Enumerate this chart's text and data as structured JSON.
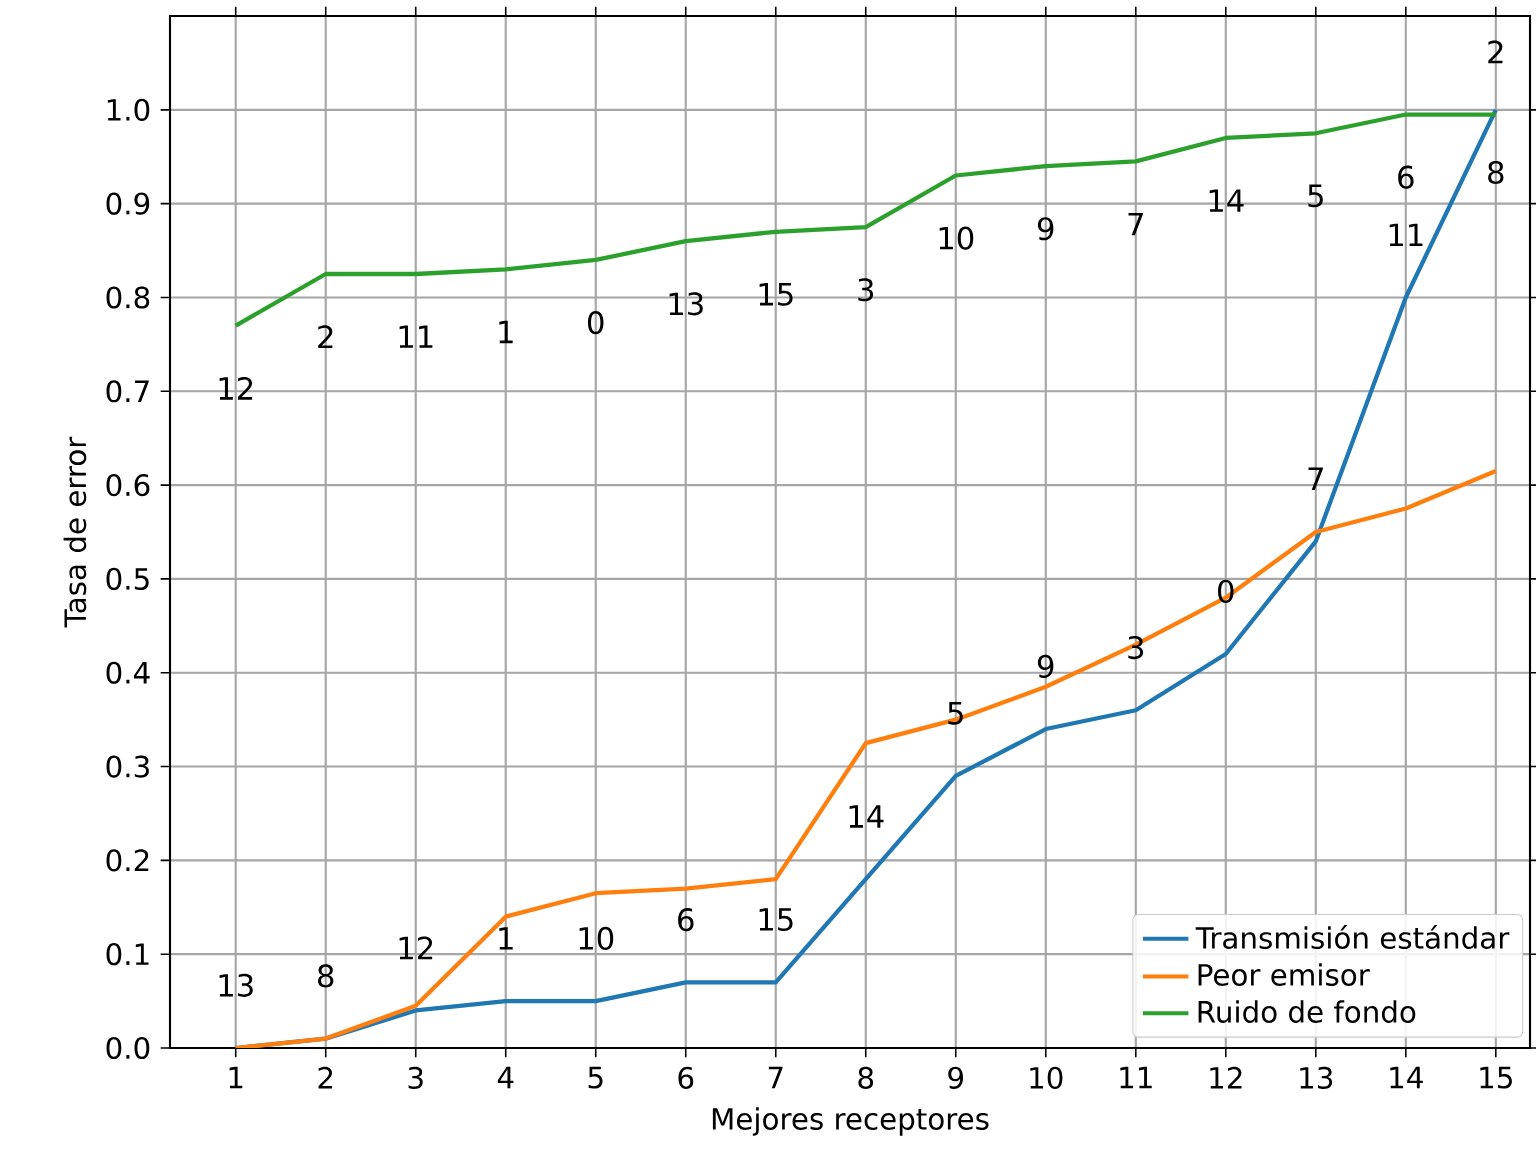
{
  "chart_data": {
    "type": "line",
    "xlabel": "Mejores receptores",
    "ylabel": "Tasa de error",
    "x": [
      1,
      2,
      3,
      4,
      5,
      6,
      7,
      8,
      9,
      10,
      11,
      12,
      13,
      14,
      15
    ],
    "xlim": [
      0.27,
      15.38
    ],
    "xticks": [
      1,
      2,
      3,
      4,
      5,
      6,
      7,
      8,
      9,
      10,
      11,
      12,
      13,
      14,
      15
    ],
    "ylim": [
      0,
      1.1
    ],
    "yticks": [
      {
        "value": 0,
        "label": "0.0"
      },
      {
        "value": 0.1,
        "label": "0.1"
      },
      {
        "value": 0.2,
        "label": "0.2"
      },
      {
        "value": 0.3,
        "label": "0.3"
      },
      {
        "value": 0.4,
        "label": "0.4"
      },
      {
        "value": 0.5,
        "label": "0.5"
      },
      {
        "value": 0.6,
        "label": "0.6"
      },
      {
        "value": 0.7,
        "label": "0.7"
      },
      {
        "value": 0.8,
        "label": "0.8"
      },
      {
        "value": 0.9,
        "label": "0.9"
      },
      {
        "value": 1.0,
        "label": "1.0"
      }
    ],
    "grid": true,
    "legend": "bottom right",
    "marker": "none",
    "line_style": "solid",
    "series": [
      {
        "name": "Transmisión estándar",
        "color": "#1f77b4",
        "values": [
          0,
          0.01,
          0.04,
          0.05,
          0.05,
          0.07,
          0.07,
          0.18,
          0.29,
          0.34,
          0.36,
          0.42,
          0.54,
          0.8,
          1.0
        ]
      },
      {
        "name": "Peor emisor",
        "color": "#ff7f0e",
        "values": [
          0,
          0.01,
          0.045,
          0.14,
          0.165,
          0.17,
          0.18,
          0.325,
          0.35,
          0.385,
          0.43,
          0.48,
          0.55,
          0.575,
          0.615
        ]
      },
      {
        "name": "Ruido de fondo",
        "color": "#2ca02c",
        "values": [
          0.77,
          0.825,
          0.825,
          0.83,
          0.84,
          0.86,
          0.87,
          0.875,
          0.93,
          0.94,
          0.945,
          0.97,
          0.975,
          0.995,
          0.995
        ]
      }
    ],
    "annotations": [
      {
        "text": "13",
        "x": 1,
        "y": 0
      },
      {
        "text": "8",
        "x": 2,
        "y": 0.01
      },
      {
        "text": "12",
        "x": 3,
        "y": 0.04
      },
      {
        "text": "1",
        "x": 4,
        "y": 0.05
      },
      {
        "text": "10",
        "x": 5,
        "y": 0.05
      },
      {
        "text": "6",
        "x": 6,
        "y": 0.07
      },
      {
        "text": "15",
        "x": 7,
        "y": 0.07
      },
      {
        "text": "14",
        "x": 8,
        "y": 0.18
      },
      {
        "text": "5",
        "x": 9,
        "y": 0.29
      },
      {
        "text": "9",
        "x": 10,
        "y": 0.34
      },
      {
        "text": "3",
        "x": 11,
        "y": 0.36
      },
      {
        "text": "0",
        "x": 12,
        "y": 0.42
      },
      {
        "text": "7",
        "x": 13,
        "y": 0.54
      },
      {
        "text": "11",
        "x": 14,
        "y": 0.8
      },
      {
        "text": "8",
        "x": 15,
        "y": 1.0
      },
      {
        "text": "12",
        "x": 1,
        "y": 0.77
      },
      {
        "text": "2",
        "x": 2,
        "y": 0.825
      },
      {
        "text": "11",
        "x": 3,
        "y": 0.825
      },
      {
        "text": "1",
        "x": 4,
        "y": 0.83
      },
      {
        "text": "0",
        "x": 5,
        "y": 0.84
      },
      {
        "text": "13",
        "x": 6,
        "y": 0.86
      },
      {
        "text": "15",
        "x": 7,
        "y": 0.87
      },
      {
        "text": "3",
        "x": 8,
        "y": 0.875
      },
      {
        "text": "10",
        "x": 9,
        "y": 0.93
      },
      {
        "text": "9",
        "x": 10,
        "y": 0.94
      },
      {
        "text": "7",
        "x": 11,
        "y": 0.945
      },
      {
        "text": "14",
        "x": 12,
        "y": 0.97
      },
      {
        "text": "5",
        "x": 13,
        "y": 0.975
      },
      {
        "text": "6",
        "x": 14,
        "y": 0.995
      },
      {
        "text": "2",
        "x": 15,
        "y": 0.995
      }
    ]
  }
}
